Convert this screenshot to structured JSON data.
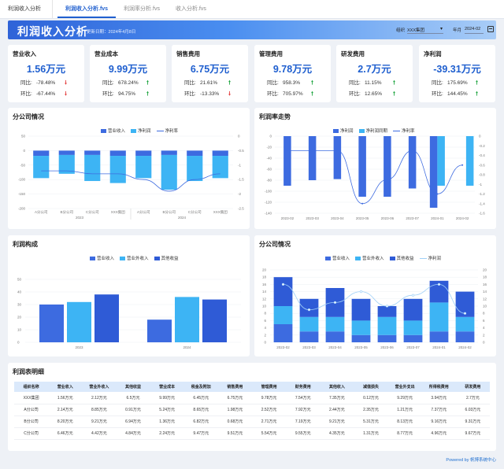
{
  "tabs": [
    {
      "label": "利润收入分析"
    },
    {
      "label": "利润收入分析.fvs",
      "active": true
    },
    {
      "label": "利润率分析.fvs"
    },
    {
      "label": "收入分析.fvs"
    }
  ],
  "header": {
    "title": "利润收入分析",
    "update_label": "更新日期：",
    "update_date": "2024年4月8日",
    "org_label": "组织",
    "org_value": "XXX集团",
    "month_label": "年月",
    "month_value": "2024-02"
  },
  "colors": {
    "primary": "#3d6be0",
    "light": "#3db4f4",
    "accent": "#1f5fcf",
    "up": "#1aa33c",
    "down": "#e33a3a"
  },
  "kpis": [
    {
      "name": "营业收入",
      "value": "1.56万元",
      "yoy_label": "同比:",
      "yoy": "-78.48%",
      "yoy_dir": "down",
      "mom_label": "环比:",
      "mom": "-67.44%",
      "mom_dir": "down"
    },
    {
      "name": "营业成本",
      "value": "9.99万元",
      "yoy_label": "同比:",
      "yoy": "678.24%",
      "yoy_dir": "up",
      "mom_label": "环比:",
      "mom": "94.75%",
      "mom_dir": "up"
    },
    {
      "name": "销售费用",
      "value": "6.75万元",
      "yoy_label": "同比:",
      "yoy": "21.61%",
      "yoy_dir": "up",
      "mom_label": "环比:",
      "mom": "-13.33%",
      "mom_dir": "down"
    },
    {
      "name": "管理费用",
      "value": "9.78万元",
      "yoy_label": "同比:",
      "yoy": "958.3%",
      "yoy_dir": "up",
      "mom_label": "环比:",
      "mom": "705.97%",
      "mom_dir": "up"
    },
    {
      "name": "研发费用",
      "value": "2.7万元",
      "yoy_label": "同比:",
      "yoy": "11.15%",
      "yoy_dir": "up",
      "mom_label": "环比:",
      "mom": "12.65%",
      "mom_dir": "up"
    },
    {
      "name": "净利润",
      "value": "-39.31万元",
      "yoy_label": "同比:",
      "yoy": "175.69%",
      "yoy_dir": "up",
      "mom_label": "环比:",
      "mom": "144.45%",
      "mom_dir": "up"
    }
  ],
  "panels": {
    "branch": {
      "title": "分公司情况"
    },
    "rate": {
      "title": "利润率走势"
    },
    "composition": {
      "title": "利润构成"
    },
    "branch2": {
      "title": "分公司情况"
    },
    "table": {
      "title": "利润表明细"
    }
  },
  "chart_data": [
    {
      "type": "bar",
      "title": "分公司情况",
      "categories": [
        "A分公司",
        "B分公司",
        "C分公司",
        "XXX集团",
        "A分公司",
        "B分公司",
        "C分公司",
        "XXX集团"
      ],
      "groups": [
        "2023",
        "2024"
      ],
      "series": [
        {
          "name": "营业收入",
          "values": [
            -18,
            -15,
            -15,
            -18,
            -18,
            -15,
            -18,
            -18
          ]
        },
        {
          "name": "净利润",
          "values": [
            -95,
            -80,
            -105,
            -112,
            -95,
            -135,
            -105,
            -95
          ]
        },
        {
          "name": "净利率",
          "values": [
            -1.2,
            -1.2,
            -1.3,
            -1.3,
            -1.5,
            -1.9,
            -1.5,
            -1.3
          ]
        }
      ],
      "y_left_ticks": [
        "50",
        "0",
        "-50",
        "-100",
        "-150",
        "-200"
      ],
      "y_right_ticks": [
        "0",
        "-0.5",
        "-1",
        "-1.5",
        "-2",
        "-2.5"
      ]
    },
    {
      "type": "bar",
      "title": "利润率走势",
      "categories": [
        "2023-02",
        "2023-03",
        "2023-04",
        "2023-05",
        "2023-06",
        "2023-07",
        "2024-01",
        "2024-02"
      ],
      "series": [
        {
          "name": "净利润",
          "values": [
            -90,
            -80,
            -78,
            -110,
            -110,
            -95,
            -130,
            null
          ]
        },
        {
          "name": "净利润同期",
          "values": [
            null,
            null,
            null,
            null,
            null,
            null,
            -90,
            -90
          ]
        },
        {
          "name": "净利率",
          "values": [
            -0.3,
            -0.3,
            -0.3,
            -1.4,
            -0.9,
            -0.3,
            -1.2,
            -0.6
          ]
        }
      ],
      "y_left_ticks": [
        "0",
        "-20",
        "-40",
        "-60",
        "-80",
        "-100",
        "-120",
        "-140"
      ],
      "y_right_ticks": [
        "0",
        "-0.2",
        "-0.4",
        "-0.6",
        "-0.8",
        "-1",
        "-1.2",
        "-1.4",
        "-1.6"
      ]
    },
    {
      "type": "bar",
      "title": "利润构成",
      "groups": [
        "2023",
        "2024"
      ],
      "series": [
        {
          "name": "营业收入",
          "values": [
            30,
            18
          ]
        },
        {
          "name": "营业外收入",
          "values": [
            32,
            36
          ]
        },
        {
          "name": "其他收益",
          "values": [
            38,
            34
          ]
        }
      ],
      "y_ticks": [
        "0",
        "10",
        "20",
        "30",
        "40",
        "50"
      ]
    },
    {
      "type": "bar",
      "title": "分公司情况",
      "categories": [
        "2023-02",
        "2023-03",
        "2023-04",
        "2023-05",
        "2023-06",
        "2023-07",
        "2024-01",
        "2024-02"
      ],
      "series": [
        {
          "name": "营业收入",
          "values": [
            5,
            3,
            3,
            2,
            2,
            2,
            3,
            3
          ]
        },
        {
          "name": "营业外收入",
          "values": [
            5,
            4,
            4,
            4,
            5,
            4,
            8,
            4
          ]
        },
        {
          "name": "其他收益",
          "values": [
            8,
            5,
            8,
            6,
            3,
            6,
            6,
            7
          ]
        },
        {
          "name": "净利润",
          "values": [
            16,
            9,
            11,
            14,
            10,
            13,
            16,
            8
          ]
        }
      ],
      "y_left_ticks": [
        "0",
        "2",
        "4",
        "6",
        "8",
        "10",
        "12",
        "14",
        "16",
        "18",
        "20"
      ],
      "y_right_ticks": [
        "0",
        "2",
        "4",
        "6",
        "8",
        "10",
        "12",
        "14",
        "16",
        "18",
        "20"
      ]
    }
  ],
  "table": {
    "headers": [
      "组织名称",
      "营业收入",
      "营业外收入",
      "其他收益",
      "营业成本",
      "税金及附加",
      "销售费用",
      "管理费用",
      "财务费用",
      "其他收入",
      "减值损失",
      "营业外支出",
      "所得税费用",
      "研发费用"
    ],
    "rows": [
      [
        "XXX集团",
        "1.56万元",
        "2.12万元",
        "6.5万元",
        "9.99万元",
        "6.45万元",
        "6.75万元",
        "9.78万元",
        "7.54万元",
        "7.35万元",
        "0.12万元",
        "9.29万元",
        "3.94万元",
        "2.7万元"
      ],
      [
        "A分公司",
        "2.14万元",
        "8.85万元",
        "0.91万元",
        "5.24万元",
        "8.65万元",
        "1.98万元",
        "2.52万元",
        "7.92万元",
        "2.44万元",
        "2.35万元",
        "1.21万元",
        "7.37万元",
        "6.03万元"
      ],
      [
        "B分公司",
        "8.20万元",
        "9.21万元",
        "6.94万元",
        "1.36万元",
        "6.82万元",
        "0.68万元",
        "2.71万元",
        "7.19万元",
        "9.21万元",
        "5.31万元",
        "8.13万元",
        "9.16万元",
        "9.31万元"
      ],
      [
        "C分公司",
        "6.46万元",
        "4.42万元",
        "4.84万元",
        "2.24万元",
        "9.47万元",
        "9.51万元",
        "5.54万元",
        "9.55万元",
        "4.35万元",
        "1.31万元",
        "8.77万元",
        "4.96万元",
        "9.67万元"
      ]
    ]
  },
  "footer": "Powered by 帆博系统中心"
}
